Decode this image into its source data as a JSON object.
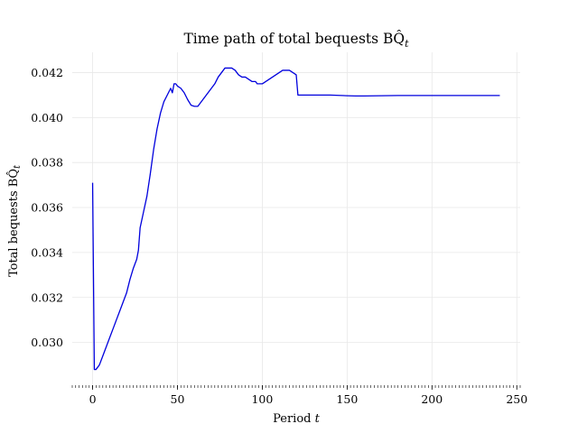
{
  "chart_data": {
    "type": "line",
    "title": "Time path of total bequests BQ̂",
    "title_subscript": "t",
    "xlabel": "Period",
    "xlabel_italic": "t",
    "ylabel": "Total bequests BQ̂",
    "ylabel_subscript": "t",
    "xlim": [
      -12,
      252
    ],
    "ylim": [
      0.0281,
      0.0429
    ],
    "x_ticks": [
      0,
      50,
      100,
      150,
      200,
      250
    ],
    "x_tick_labels": [
      "0",
      "50",
      "100",
      "150",
      "200",
      "250"
    ],
    "y_ticks": [
      0.03,
      0.032,
      0.034,
      0.036,
      0.038,
      0.04,
      0.042
    ],
    "y_tick_labels": [
      "0.030",
      "0.032",
      "0.034",
      "0.036",
      "0.038",
      "0.040",
      "0.042"
    ],
    "grid": true,
    "minor_x_ticks_every": 2,
    "series": [
      {
        "color": "#0000dd",
        "x": [
          0,
          1,
          2,
          3,
          4,
          6,
          8,
          10,
          12,
          14,
          16,
          18,
          20,
          22,
          24,
          26,
          27,
          28,
          30,
          32,
          34,
          36,
          38,
          40,
          42,
          44,
          46,
          47,
          48,
          49,
          50,
          52,
          54,
          56,
          58,
          60,
          62,
          64,
          66,
          68,
          70,
          72,
          74,
          76,
          78,
          80,
          82,
          84,
          86,
          88,
          90,
          92,
          94,
          96,
          97,
          98,
          100,
          102,
          104,
          106,
          108,
          110,
          112,
          114,
          116,
          118,
          120,
          121,
          122,
          125,
          130,
          140,
          150,
          155,
          160,
          170,
          180,
          190,
          200,
          210,
          220,
          230,
          240
        ],
        "y": [
          0.0371,
          0.0288,
          0.0288,
          0.0289,
          0.029,
          0.0294,
          0.0298,
          0.0302,
          0.0306,
          0.031,
          0.0314,
          0.0318,
          0.0322,
          0.0328,
          0.0333,
          0.0337,
          0.0341,
          0.0351,
          0.0358,
          0.0365,
          0.0375,
          0.0386,
          0.0395,
          0.0402,
          0.0407,
          0.041,
          0.0413,
          0.0411,
          0.0415,
          0.0415,
          0.0414,
          0.0413,
          0.0411,
          0.0408,
          0.04055,
          0.0405,
          0.0405,
          0.0407,
          0.0409,
          0.0411,
          0.0413,
          0.0415,
          0.0418,
          0.042,
          0.0422,
          0.0422,
          0.0422,
          0.0421,
          0.0419,
          0.0418,
          0.0418,
          0.0417,
          0.0416,
          0.0416,
          0.0415,
          0.0415,
          0.0415,
          0.0416,
          0.0417,
          0.0418,
          0.0419,
          0.042,
          0.0421,
          0.0421,
          0.0421,
          0.042,
          0.0419,
          0.041,
          0.041,
          0.041,
          0.041,
          0.041,
          0.04097,
          0.04096,
          0.04096,
          0.04097,
          0.04098,
          0.04098,
          0.04098,
          0.04098,
          0.04098,
          0.04098,
          0.04098
        ]
      }
    ]
  }
}
